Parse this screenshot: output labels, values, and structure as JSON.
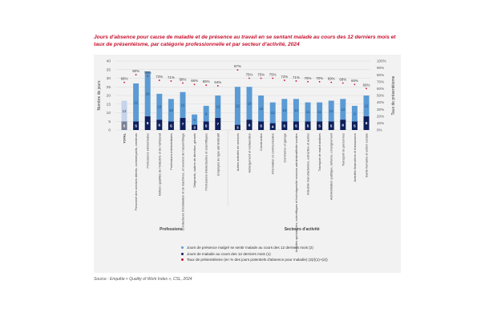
{
  "title": "Jours d'absence pour cause de maladie et de présence au travail en se sentant malade au cours des 12 derniers mois et taux de présentéisme, par catégorie professionnelle et par secteur d'activité, 2024",
  "source": "Source : Enquête « Quality of Work Index », CSL, 2024",
  "colors": {
    "presence": "#5b9bd5",
    "presence_total": "#c5d4ea",
    "absence": "#0d1f5c",
    "absence_total": "#7a8196",
    "rate": "#c8102e",
    "title": "#c8102e"
  },
  "chart_data": {
    "type": "bar",
    "stacked": true,
    "title": "Jours d'absence pour cause de maladie et de présence au travail en se sentant malade au cours des 12 derniers mois et taux de présentéisme, par catégorie professionnelle et par secteur d'activité, 2024",
    "ylabel": "Nombre de jours",
    "y2label": "Taux de présentéisme",
    "ylim": [
      0,
      40
    ],
    "yticks": [
      "0",
      "5",
      "10",
      "15",
      "20",
      "25",
      "30",
      "35",
      "40"
    ],
    "y2lim": [
      0,
      100
    ],
    "y2ticks": [
      "0%",
      "10%",
      "20%",
      "30%",
      "40%",
      "50%",
      "60%",
      "70%",
      "80%",
      "90%",
      "100%"
    ],
    "grid": true,
    "legend_position": "bottom",
    "groups": [
      {
        "label": "Professions",
        "start": 0,
        "end": 8
      },
      {
        "label": "Secteurs d'activité",
        "start": 9,
        "end": 23
      }
    ],
    "categories": [
      "TOTAL",
      "Personnel des services directs, commerçants, vendeurs",
      "Professions élémentaires",
      "Métiers qualifiés de l'industrie et de l'artisanat",
      "Professions intermédiaires",
      "Conducteurs d'installation et de machines, et ouvriers de l'assemblage",
      "Dirigeants, cadres de direction, gérants",
      "Professions intellectuelles et scientifiques",
      "Employés de type administratif",
      "Autres activités de services",
      "Hébergement et restauration",
      "Construction",
      "Information et communication",
      "Commerce et garage",
      "Activités spécialisées, scientifiques et techniques/de services administratifs/de soutien",
      "Industrie manufacturière, extractive et autres",
      "Transport de marchandises",
      "Administration publique, défense, enseignement",
      "Transport de personnes",
      "Activités financières et d'assurance",
      "Santé humaine et action sociale"
    ],
    "series": [
      {
        "name": "Jours de maladie au cours des 12 derniers mois (1)",
        "type": "bar",
        "values": [
          5,
          5,
          8,
          6,
          5,
          7,
          3,
          5,
          7,
          3,
          6,
          5,
          4,
          5,
          5,
          5,
          5,
          5,
          6,
          5,
          8
        ]
      },
      {
        "name": "Jours de présence malgré se sentir malade au cours des 12 derniers mois (2)",
        "type": "bar",
        "values": [
          12,
          22,
          26,
          15,
          13,
          15,
          6,
          9,
          13,
          22,
          19,
          15,
          12,
          13,
          13,
          11,
          11,
          12,
          12,
          9,
          12
        ]
      },
      {
        "name": "Taux de présentéisme (en % des jours potentiels d'absence pour maladie) (2)/((1)+(2))",
        "type": "scatter",
        "axis": "y2",
        "values": [
          69,
          80,
          78,
          72,
          71,
          68,
          66,
          65,
          64,
          87,
          75,
          75,
          75,
          72,
          71,
          70,
          70,
          69,
          68,
          66,
          60
        ]
      }
    ],
    "legend": [
      "Jours de présence malgré se sentir malade au cours des 12 derniers mois (2)",
      "Jours de maladie au cours des 12 derniers mois (1)",
      "Taux de présentéisme (en % des jours potentiels d'absence pour maladie) (2)/((1)+(2))"
    ]
  }
}
